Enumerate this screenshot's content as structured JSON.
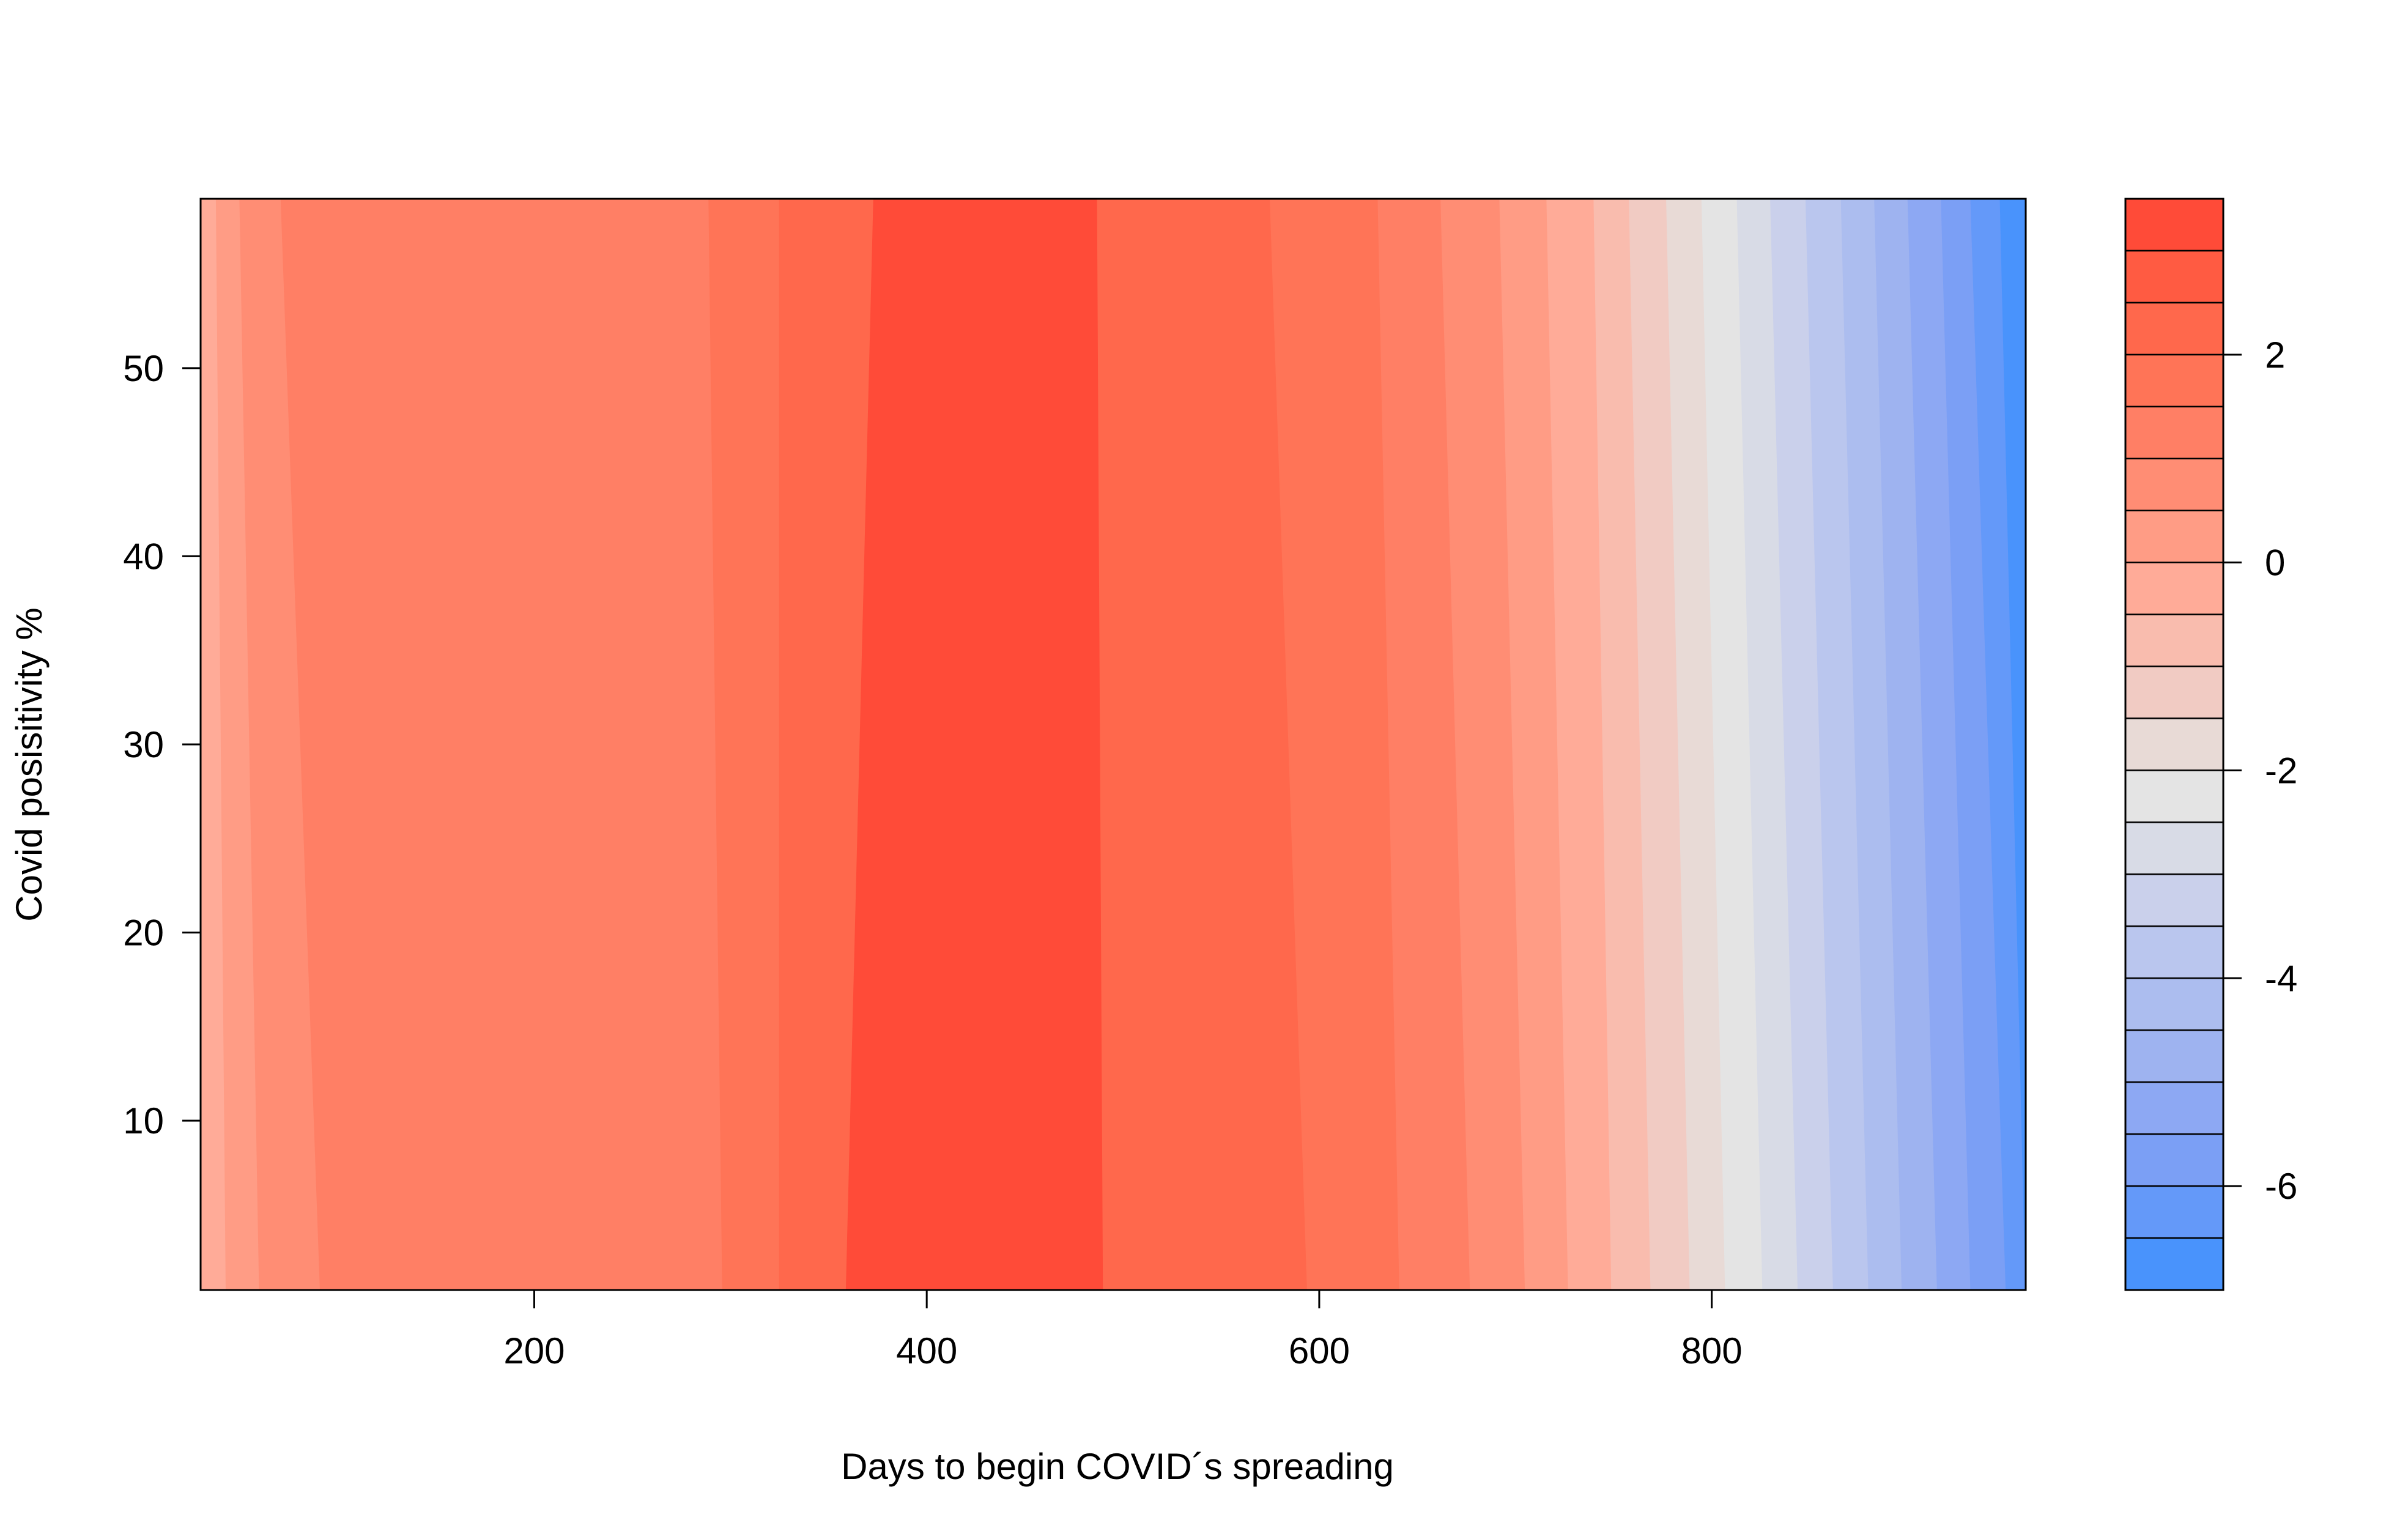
{
  "chart_data": {
    "type": "heatmap",
    "subtype": "filled-contour",
    "title": "",
    "xlabel": "Days to begin COVID´s spreading",
    "ylabel": "Covid posisitivity %",
    "xlim": [
      30,
      960
    ],
    "ylim": [
      1,
      59
    ],
    "xticks": [
      200,
      400,
      600,
      800
    ],
    "yticks": [
      10,
      20,
      30,
      40,
      50
    ],
    "grid": false,
    "colorbar": {
      "position": "right",
      "ticks": [
        2,
        0,
        -2,
        -4,
        -6
      ],
      "levels": [
        3.5,
        3.0,
        2.5,
        2.0,
        1.5,
        1.0,
        0.5,
        0.0,
        -0.5,
        -1.0,
        -1.5,
        -2.0,
        -2.5,
        -3.0,
        -3.5,
        -4.0,
        -4.5,
        -5.0,
        -5.5,
        -6.0,
        -6.5,
        -7.0
      ],
      "colors": [
        "#FF4B38",
        "#FF5B42",
        "#FF684C",
        "#FF7457",
        "#FF7F65",
        "#FF8D74",
        "#FF9C85",
        "#FFAB98",
        "#F9BCAE",
        "#F1CBC3",
        "#E8DAD6",
        "#E4E4E4",
        "#D8DBE6",
        "#CAD0EB",
        "#BAC6EE",
        "#ACBDEF",
        "#9EB3F0",
        "#8DA8F3",
        "#7B9FF5",
        "#6499F9",
        "#4993FC",
        "#008EFF"
      ]
    },
    "band_fills": [
      "#FFAB98",
      "#FF9C85",
      "#FF8D74",
      "#FF7F65",
      "#FF7457",
      "#FF684C",
      "#FF4B38",
      "#FF684C",
      "#FF7457",
      "#FF7F65",
      "#FF8D74",
      "#FF9C85",
      "#FFAB98",
      "#F9BCAE",
      "#F1CBC3",
      "#E8DAD6",
      "#E4E4E4",
      "#D8DBE6",
      "#CAD0EB",
      "#BAC6EE",
      "#ACBDEF",
      "#9EB3F0",
      "#8DA8F3",
      "#7B9FF5",
      "#6499F9",
      "#4993FC"
    ],
    "contour_lines": [
      {
        "level": 0.0,
        "x_top": 38,
        "x_bottom": 43
      },
      {
        "level": 0.5,
        "x_top": 50,
        "x_bottom": 60
      },
      {
        "level": 1.0,
        "x_top": 71,
        "x_bottom": 91
      },
      {
        "level": 1.5,
        "x_top": 289,
        "x_bottom": 296
      },
      {
        "level": 2.0,
        "x_top": 325,
        "x_bottom": 325
      },
      {
        "level": 3.0,
        "x_top": 373,
        "x_bottom": 359
      },
      {
        "level": 3.0,
        "x_top": 487,
        "x_bottom": 490
      },
      {
        "level": 2.0,
        "x_top": 575,
        "x_bottom": 594
      },
      {
        "level": 1.5,
        "x_top": 630,
        "x_bottom": 641
      },
      {
        "level": 1.0,
        "x_top": 662,
        "x_bottom": 677
      },
      {
        "level": 0.5,
        "x_top": 692,
        "x_bottom": 705
      },
      {
        "level": 0.0,
        "x_top": 716,
        "x_bottom": 727
      },
      {
        "level": -0.5,
        "x_top": 740,
        "x_bottom": 749
      },
      {
        "level": -1.0,
        "x_top": 758,
        "x_bottom": 769
      },
      {
        "level": -1.5,
        "x_top": 777,
        "x_bottom": 789
      },
      {
        "level": -2.0,
        "x_top": 795,
        "x_bottom": 807
      },
      {
        "level": -2.5,
        "x_top": 813,
        "x_bottom": 826
      },
      {
        "level": -3.0,
        "x_top": 830,
        "x_bottom": 844
      },
      {
        "level": -3.5,
        "x_top": 848,
        "x_bottom": 862
      },
      {
        "level": -4.0,
        "x_top": 866,
        "x_bottom": 880
      },
      {
        "level": -4.5,
        "x_top": 883,
        "x_bottom": 897
      },
      {
        "level": -5.0,
        "x_top": 900,
        "x_bottom": 915
      },
      {
        "level": -5.5,
        "x_top": 917,
        "x_bottom": 932
      },
      {
        "level": -6.0,
        "x_top": 932,
        "x_bottom": 950
      },
      {
        "level": -6.5,
        "x_top": 947,
        "x_bottom": 960
      }
    ]
  }
}
